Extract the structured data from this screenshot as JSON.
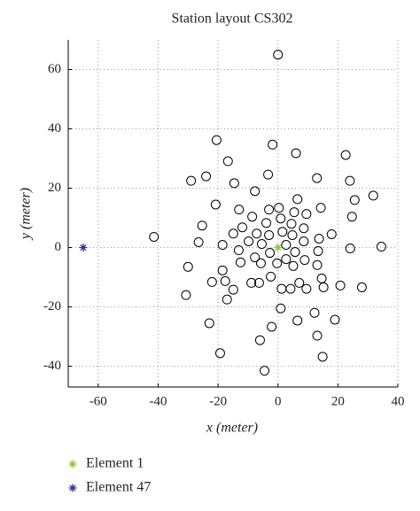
{
  "chart_data": {
    "type": "scatter",
    "title": "Station layout CS302",
    "x_label": "x (meter)",
    "y_label": "y (meter)",
    "xlim": [
      -70,
      40
    ],
    "ylim": [
      -47,
      70
    ],
    "xticks": [
      -60,
      -40,
      -20,
      0,
      20,
      40
    ],
    "yticks": [
      -40,
      -20,
      0,
      20,
      40,
      60
    ],
    "grid": true,
    "series": [
      {
        "marker": "circle",
        "color": "#000000",
        "x": [
          0,
          -20.5,
          -1.8,
          6,
          22.6,
          -16.7,
          -3.3,
          -24,
          -29,
          13,
          24,
          -14.6,
          -7.7,
          31.8,
          25.6,
          6.5,
          -20.8,
          0.3,
          -3,
          14.3,
          -13,
          5.4,
          9.5,
          -8.6,
          24.7,
          0.9,
          -3.9,
          -11.9,
          4.5,
          8.6,
          -25.3,
          -7.1,
          1.5,
          -3,
          -14.9,
          17.9,
          4.8,
          13.7,
          -41.4,
          8.6,
          -9.8,
          -5.4,
          -18.5,
          -26.5,
          2.7,
          34.5,
          24.1,
          13.4,
          -13.1,
          -2.7,
          5.7,
          -7.7,
          2.7,
          8.9,
          -0.3,
          -12.5,
          -30,
          -5.7,
          5.1,
          13.1,
          -18.5,
          -2.4,
          -8.9,
          14.6,
          -22,
          -17.6,
          -6.3,
          7.1,
          20.8,
          28,
          15.2,
          1.2,
          4.2,
          -14.9,
          9.5,
          -30.7,
          -17,
          0.9,
          12.2,
          19,
          6.5,
          -22.9,
          -2.1,
          13.1,
          -6,
          -19.3,
          14.9,
          -4.5
        ],
        "values": [
          65,
          36.2,
          34.7,
          31.8,
          31.2,
          29.1,
          24.6,
          24,
          22.5,
          23.4,
          22.5,
          21.7,
          19,
          17.5,
          16,
          16.3,
          14.5,
          13.4,
          12.8,
          13.4,
          12.8,
          11.9,
          11.3,
          10.4,
          10.4,
          9.8,
          8.3,
          6.8,
          8,
          6.5,
          7.4,
          4.7,
          5.3,
          4.2,
          4.7,
          4.5,
          4.2,
          3,
          3.6,
          2.1,
          2.1,
          1.2,
          0.9,
          1.8,
          0.9,
          0.3,
          -0.3,
          -1.2,
          -0.9,
          -1.8,
          -1.5,
          -3.3,
          -3.9,
          -4.2,
          -5.3,
          -5,
          -6.5,
          -5.3,
          -6.2,
          -5.9,
          -7.7,
          -9.8,
          -11.9,
          -10.4,
          -11.6,
          -11.3,
          -11.9,
          -11.9,
          -12.8,
          -13.4,
          -13.4,
          -13.9,
          -13.9,
          -14.2,
          -13.9,
          -16,
          -17.5,
          -20.5,
          -22,
          -24.3,
          -24.6,
          -25.5,
          -26.7,
          -29.7,
          -31.2,
          -35.6,
          -36.8,
          -41.5
        ]
      },
      {
        "name": "Element 1",
        "marker": "star",
        "color": "#8dc63f",
        "x": [
          0
        ],
        "values": [
          0
        ]
      },
      {
        "name": "Element 47",
        "marker": "star",
        "color": "#2e3192",
        "x": [
          -65
        ],
        "values": [
          0
        ]
      }
    ]
  }
}
